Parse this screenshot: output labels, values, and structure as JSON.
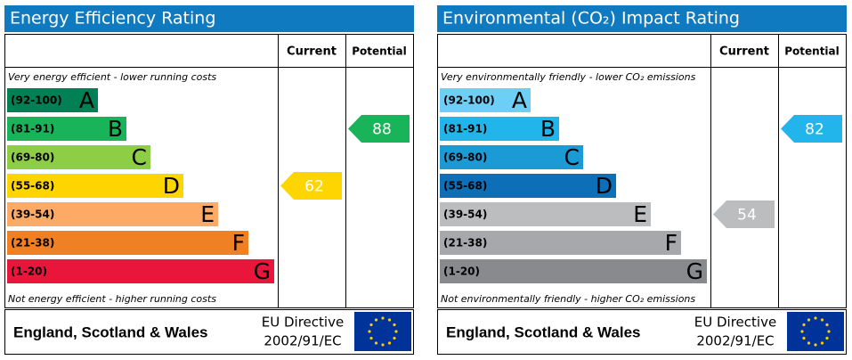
{
  "panels": [
    {
      "title": "Energy Efficiency Rating",
      "header_current": "Current",
      "header_potential": "Potential",
      "top_note": "Very energy efficient - lower running costs",
      "bottom_note": "Not energy efficient - higher running costs",
      "bands": [
        {
          "range": "(92-100)",
          "letter": "A",
          "color": "#008054"
        },
        {
          "range": "(81-91)",
          "letter": "B",
          "color": "#19b459"
        },
        {
          "range": "(69-80)",
          "letter": "C",
          "color": "#8dce46"
        },
        {
          "range": "(55-68)",
          "letter": "D",
          "color": "#ffd500"
        },
        {
          "range": "(39-54)",
          "letter": "E",
          "color": "#fcaa65"
        },
        {
          "range": "(21-38)",
          "letter": "F",
          "color": "#ef8023"
        },
        {
          "range": "(1-20)",
          "letter": "G",
          "color": "#e9153b"
        }
      ],
      "current": 62,
      "potential": 88,
      "footer": {
        "region": "England, Scotland & Wales",
        "directive": [
          "EU Directive",
          "2002/91/EC"
        ]
      }
    },
    {
      "title": "Environmental (CO₂) Impact Rating",
      "header_current": "Current",
      "header_potential": "Potential",
      "top_note": "Very environmentally friendly - lower CO₂ emissions",
      "bottom_note": "Not environmentally friendly - higher CO₂ emissions",
      "bands": [
        {
          "range": "(92-100)",
          "letter": "A",
          "color": "#6ecff6"
        },
        {
          "range": "(81-91)",
          "letter": "B",
          "color": "#22b5eb"
        },
        {
          "range": "(69-80)",
          "letter": "C",
          "color": "#1c9ad6"
        },
        {
          "range": "(55-68)",
          "letter": "D",
          "color": "#0d6fb8"
        },
        {
          "range": "(39-54)",
          "letter": "E",
          "color": "#bbbdbf"
        },
        {
          "range": "(21-38)",
          "letter": "F",
          "color": "#a6a8ab"
        },
        {
          "range": "(1-20)",
          "letter": "G",
          "color": "#898a8e"
        }
      ],
      "current": 54,
      "potential": 82,
      "footer": {
        "region": "England, Scotland & Wales",
        "directive": [
          "EU Directive",
          "2002/91/EC"
        ]
      }
    }
  ]
}
